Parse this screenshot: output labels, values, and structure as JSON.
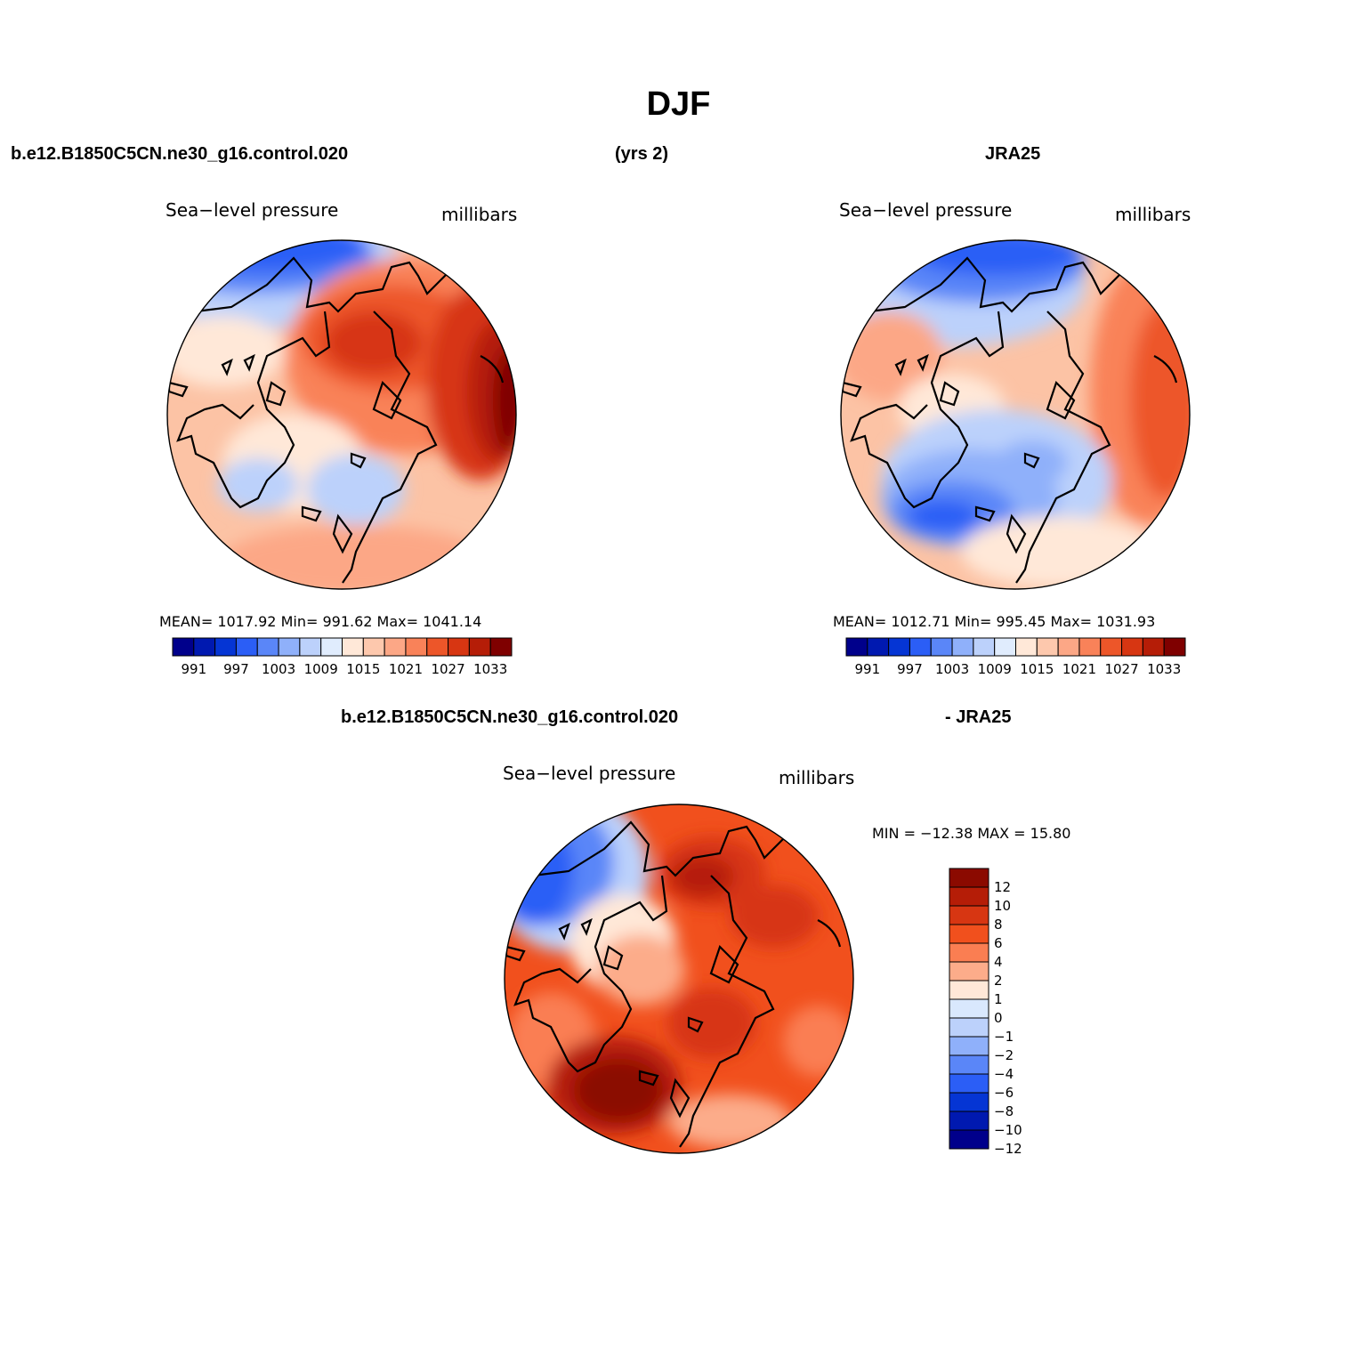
{
  "figure": {
    "title": "DJF",
    "case_name": "b.e12.B1850C5CN.ne30_g16.control.020",
    "years": "(yrs 2)",
    "obs_name": "JRA25"
  },
  "panels": [
    {
      "id": "model",
      "variable_label": "Sea−level pressure",
      "units_label": "millibars",
      "stats": {
        "mean": "1017.92",
        "min": "991.62",
        "max": "1041.14"
      },
      "stats_text": "MEAN=  1017.92   Min=  991.62   Max=  1041.14"
    },
    {
      "id": "observation",
      "variable_label": "Sea−level pressure",
      "units_label": "millibars",
      "stats": {
        "mean": "1012.71",
        "min": "995.45",
        "max": "1031.93"
      },
      "stats_text": "MEAN=  1012.71   Min=  995.45   Max=  1031.93"
    }
  ],
  "difference_panel": {
    "title_left": "b.e12.B1850C5CN.ne30_g16.control.020",
    "title_right": "- JRA25",
    "variable_label": "Sea−level pressure",
    "units_label": "millibars",
    "stats": {
      "min": "−12.38",
      "max": "15.80"
    },
    "stats_text": "MIN = −12.38  MAX =   15.80"
  },
  "colorbars": {
    "absolute": {
      "colors": [
        "#00008b",
        "#0019b0",
        "#0535d4",
        "#2b5ef6",
        "#5a86f8",
        "#8fb0fa",
        "#bcd1fb",
        "#e0ecfd",
        "#ffe8d8",
        "#fdc8ad",
        "#fca786",
        "#f98259",
        "#ed5629",
        "#d73612",
        "#b51d07",
        "#7f0000"
      ],
      "labels": [
        "991",
        "997",
        "1003",
        "1009",
        "1015",
        "1021",
        "1027",
        "1033"
      ]
    },
    "difference": {
      "colors": [
        "#8b0a00",
        "#b51d07",
        "#d73612",
        "#f1501d",
        "#fa7e52",
        "#fcac8a",
        "#ffe8d8",
        "#d9e8fd",
        "#bcd1fb",
        "#8fb0fa",
        "#5a86f8",
        "#2b5ef6",
        "#0535d4",
        "#0019b0",
        "#00008b"
      ],
      "labels": [
        "12",
        "10",
        "8",
        "6",
        "4",
        "2",
        "1",
        "0",
        "−1",
        "−2",
        "−4",
        "−6",
        "−8",
        "−10",
        "−12"
      ]
    }
  }
}
